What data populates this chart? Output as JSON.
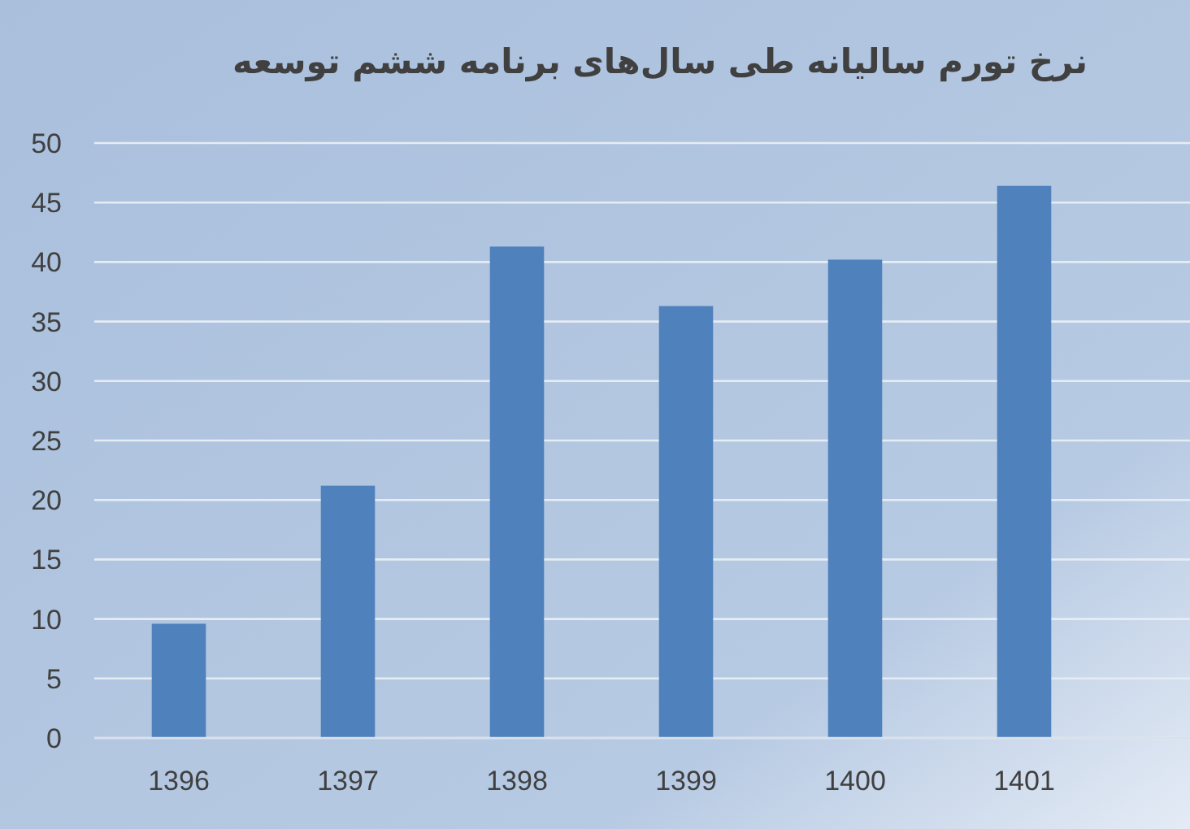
{
  "chart_data": {
    "type": "bar",
    "title": "نرخ تورم سالیانه طی سال‌های برنامه ششم توسعه",
    "categories": [
      "1396",
      "1397",
      "1398",
      "1399",
      "1400",
      "1401"
    ],
    "values": [
      9.6,
      21.2,
      41.3,
      36.3,
      40.2,
      46.4
    ],
    "color": "#4f81bd",
    "ylim": [
      0,
      50
    ],
    "yticks": [
      0,
      5,
      10,
      15,
      20,
      25,
      30,
      35,
      40,
      45,
      50
    ],
    "grid": "y"
  }
}
